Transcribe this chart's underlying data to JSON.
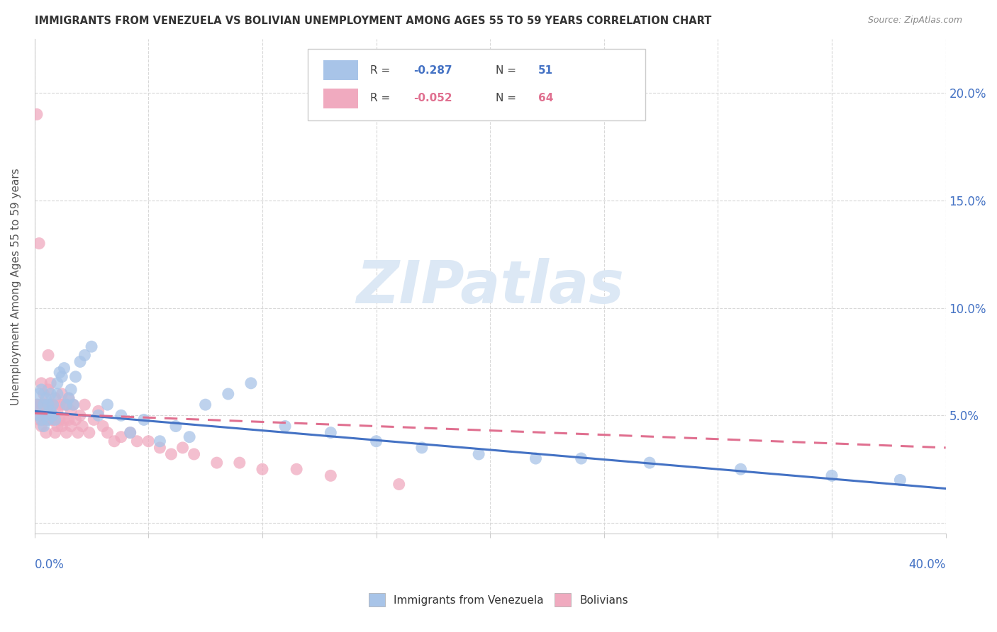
{
  "title": "IMMIGRANTS FROM VENEZUELA VS BOLIVIAN UNEMPLOYMENT AMONG AGES 55 TO 59 YEARS CORRELATION CHART",
  "source": "Source: ZipAtlas.com",
  "ylabel": "Unemployment Among Ages 55 to 59 years",
  "yticks": [
    0.0,
    0.05,
    0.1,
    0.15,
    0.2
  ],
  "ytick_labels": [
    "",
    "5.0%",
    "10.0%",
    "15.0%",
    "20.0%"
  ],
  "xlim": [
    0.0,
    0.4
  ],
  "ylim": [
    -0.005,
    0.225
  ],
  "color_blue": "#a8c4e8",
  "color_pink": "#f0aabf",
  "color_blue_line": "#4472c4",
  "color_pink_line": "#e07090",
  "watermark_color": "#dce8f5",
  "background_color": "#ffffff",
  "blue_scatter_x": [
    0.001,
    0.002,
    0.002,
    0.003,
    0.003,
    0.004,
    0.004,
    0.005,
    0.005,
    0.006,
    0.006,
    0.007,
    0.007,
    0.008,
    0.008,
    0.009,
    0.01,
    0.01,
    0.011,
    0.012,
    0.013,
    0.014,
    0.015,
    0.016,
    0.017,
    0.018,
    0.02,
    0.022,
    0.025,
    0.028,
    0.032,
    0.038,
    0.042,
    0.048,
    0.055,
    0.062,
    0.068,
    0.075,
    0.085,
    0.095,
    0.11,
    0.13,
    0.15,
    0.17,
    0.195,
    0.22,
    0.24,
    0.27,
    0.31,
    0.35,
    0.38
  ],
  "blue_scatter_y": [
    0.055,
    0.06,
    0.05,
    0.048,
    0.062,
    0.055,
    0.045,
    0.058,
    0.05,
    0.055,
    0.048,
    0.052,
    0.06,
    0.05,
    0.055,
    0.048,
    0.06,
    0.065,
    0.07,
    0.068,
    0.072,
    0.055,
    0.058,
    0.062,
    0.055,
    0.068,
    0.075,
    0.078,
    0.082,
    0.05,
    0.055,
    0.05,
    0.042,
    0.048,
    0.038,
    0.045,
    0.04,
    0.055,
    0.06,
    0.065,
    0.045,
    0.042,
    0.038,
    0.035,
    0.032,
    0.03,
    0.03,
    0.028,
    0.025,
    0.022,
    0.02
  ],
  "pink_scatter_x": [
    0.001,
    0.001,
    0.002,
    0.002,
    0.002,
    0.003,
    0.003,
    0.003,
    0.004,
    0.004,
    0.004,
    0.005,
    0.005,
    0.005,
    0.006,
    0.006,
    0.006,
    0.007,
    0.007,
    0.007,
    0.008,
    0.008,
    0.009,
    0.009,
    0.01,
    0.01,
    0.011,
    0.011,
    0.012,
    0.012,
    0.013,
    0.013,
    0.014,
    0.014,
    0.015,
    0.015,
    0.016,
    0.016,
    0.017,
    0.018,
    0.019,
    0.02,
    0.021,
    0.022,
    0.024,
    0.026,
    0.028,
    0.03,
    0.032,
    0.035,
    0.038,
    0.042,
    0.045,
    0.05,
    0.055,
    0.06,
    0.065,
    0.07,
    0.08,
    0.09,
    0.1,
    0.115,
    0.13,
    0.16
  ],
  "pink_scatter_y": [
    0.19,
    0.055,
    0.13,
    0.055,
    0.048,
    0.065,
    0.055,
    0.045,
    0.06,
    0.055,
    0.048,
    0.055,
    0.048,
    0.042,
    0.052,
    0.062,
    0.078,
    0.055,
    0.048,
    0.065,
    0.055,
    0.048,
    0.058,
    0.042,
    0.052,
    0.045,
    0.055,
    0.048,
    0.06,
    0.045,
    0.055,
    0.048,
    0.055,
    0.042,
    0.058,
    0.048,
    0.052,
    0.045,
    0.055,
    0.048,
    0.042,
    0.05,
    0.045,
    0.055,
    0.042,
    0.048,
    0.052,
    0.045,
    0.042,
    0.038,
    0.04,
    0.042,
    0.038,
    0.038,
    0.035,
    0.032,
    0.035,
    0.032,
    0.028,
    0.028,
    0.025,
    0.025,
    0.022,
    0.018
  ],
  "blue_line_start_y": 0.052,
  "blue_line_end_y": 0.016,
  "pink_line_start_y": 0.051,
  "pink_line_end_y": 0.035
}
